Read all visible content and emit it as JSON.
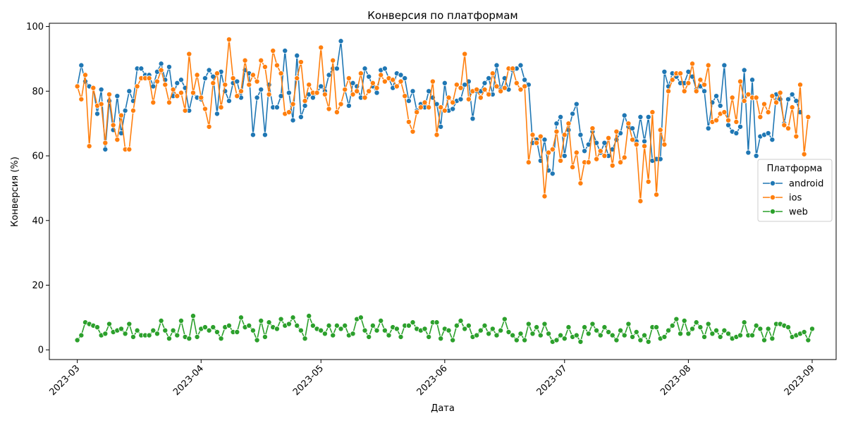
{
  "chart_data": {
    "type": "line",
    "title": "Конверсия по платформам",
    "xlabel": "Дата",
    "ylabel": "Конверсия (%)",
    "x_range": [
      "2023-02-22",
      "2023-09-07"
    ],
    "ylim": [
      -3,
      101
    ],
    "y_ticks": [
      0,
      20,
      40,
      60,
      80,
      100
    ],
    "x_ticks": [
      {
        "date": "2023-03-01",
        "label": "2023-03"
      },
      {
        "date": "2023-04-01",
        "label": "2023-04"
      },
      {
        "date": "2023-05-01",
        "label": "2023-05"
      },
      {
        "date": "2023-06-01",
        "label": "2023-06"
      },
      {
        "date": "2023-07-01",
        "label": "2023-07"
      },
      {
        "date": "2023-08-01",
        "label": "2023-08"
      },
      {
        "date": "2023-09-01",
        "label": "2023-09"
      }
    ],
    "grid": false,
    "legend": {
      "title": "Платформа",
      "position": "right"
    },
    "start_date": "2023-03-01",
    "series": [
      {
        "name": "android",
        "color": "#1f77b4",
        "values": [
          81.5,
          88.0,
          83.0,
          81.5,
          81.0,
          73.0,
          80.5,
          62.0,
          77.0,
          68.0,
          78.5,
          67.0,
          74.0,
          80.0,
          77.0,
          87.0,
          87.0,
          85.0,
          85.0,
          81.5,
          86.0,
          88.5,
          83.5,
          87.5,
          78.5,
          82.5,
          83.5,
          81.0,
          74.0,
          79.5,
          78.0,
          77.5,
          84.0,
          86.5,
          84.5,
          73.0,
          86.0,
          80.0,
          77.0,
          82.5,
          83.0,
          78.0,
          86.5,
          85.5,
          66.5,
          78.0,
          80.5,
          66.5,
          82.0,
          75.0,
          75.0,
          78.5,
          92.5,
          79.5,
          71.0,
          91.0,
          72.0,
          75.5,
          79.0,
          78.0,
          79.5,
          81.5,
          80.0,
          85.0,
          87.0,
          87.0,
          95.5,
          80.5,
          75.5,
          82.5,
          81.5,
          78.0,
          87.0,
          84.5,
          81.5,
          79.5,
          86.5,
          87.0,
          84.0,
          81.0,
          85.5,
          85.0,
          84.0,
          77.0,
          80.0,
          74.0,
          76.0,
          75.0,
          80.0,
          78.0,
          76.0,
          69.0,
          82.5,
          74.0,
          74.5,
          77.0,
          77.5,
          82.0,
          83.0,
          71.5,
          80.0,
          80.0,
          82.5,
          84.0,
          79.0,
          88.0,
          80.5,
          84.0,
          80.5,
          86.5,
          87.0,
          88.0,
          83.5,
          82.0,
          64.0,
          65.0,
          58.5,
          65.0,
          55.5,
          54.5,
          70.0,
          72.0,
          60.0,
          68.0,
          73.0,
          76.0,
          66.5,
          61.5,
          63.5,
          67.5,
          64.0,
          61.0,
          64.0,
          60.0,
          62.0,
          65.0,
          67.0,
          72.5,
          69.0,
          68.5,
          64.5,
          72.0,
          64.5,
          72.0,
          58.5,
          59.0,
          59.0,
          86.0,
          81.5,
          85.5,
          84.5,
          82.5,
          82.5,
          86.0,
          84.5,
          80.5,
          81.5,
          80.0,
          68.5,
          76.5,
          78.5,
          75.5,
          88.0,
          69.5,
          67.5,
          67.0,
          69.0,
          86.5,
          61.0,
          83.5,
          60.0,
          66.0,
          66.5,
          67.0,
          65.0,
          79.0,
          77.5,
          70.0,
          77.5,
          79.0,
          77.0,
          73.5
        ]
      },
      {
        "name": "ios",
        "color": "#ff7f0e",
        "values": [
          81.5,
          77.5,
          85.0,
          63.0,
          81.0,
          75.5,
          76.0,
          64.0,
          79.0,
          69.5,
          65.0,
          72.5,
          62.0,
          62.0,
          74.0,
          81.5,
          84.0,
          84.0,
          84.0,
          76.5,
          83.0,
          86.5,
          82.0,
          76.5,
          80.5,
          78.5,
          79.5,
          74.0,
          91.5,
          79.5,
          85.0,
          78.0,
          74.5,
          69.0,
          82.5,
          85.5,
          75.0,
          82.0,
          96.0,
          84.0,
          78.5,
          80.0,
          89.5,
          82.0,
          85.0,
          83.0,
          89.5,
          87.5,
          79.0,
          92.5,
          88.0,
          85.5,
          73.0,
          73.5,
          76.0,
          84.0,
          89.0,
          77.0,
          82.0,
          79.5,
          79.5,
          93.5,
          79.0,
          74.5,
          89.5,
          73.5,
          76.0,
          80.5,
          84.0,
          79.0,
          80.0,
          85.5,
          78.0,
          80.0,
          82.5,
          81.0,
          85.0,
          83.0,
          84.0,
          83.5,
          81.5,
          83.0,
          78.5,
          70.5,
          67.5,
          73.5,
          75.0,
          76.5,
          75.0,
          83.0,
          66.5,
          75.0,
          74.0,
          78.0,
          76.5,
          82.0,
          81.0,
          91.5,
          77.5,
          80.0,
          80.5,
          78.0,
          80.5,
          79.0,
          85.5,
          81.5,
          80.0,
          81.0,
          87.0,
          87.0,
          82.5,
          80.5,
          81.5,
          58.0,
          66.5,
          64.0,
          66.0,
          47.5,
          61.0,
          62.0,
          67.5,
          58.5,
          66.5,
          70.0,
          56.5,
          61.0,
          51.5,
          58.0,
          58.0,
          68.5,
          59.0,
          61.5,
          60.0,
          65.5,
          57.0,
          67.5,
          58.0,
          59.5,
          70.0,
          65.0,
          63.5,
          46.0,
          63.0,
          52.0,
          73.5,
          48.0,
          68.0,
          63.5,
          80.0,
          83.5,
          85.5,
          85.5,
          80.0,
          82.5,
          88.5,
          80.0,
          83.5,
          82.0,
          88.0,
          70.5,
          71.0,
          73.0,
          73.5,
          71.0,
          78.0,
          70.5,
          83.0,
          77.0,
          79.0,
          78.0,
          78.0,
          72.0,
          76.0,
          73.5,
          78.5,
          76.5,
          79.5,
          69.5,
          68.5,
          75.0,
          66.0,
          82.0,
          60.5,
          72.0
        ]
      },
      {
        "name": "web",
        "color": "#2ca02c",
        "values": [
          3.0,
          4.5,
          8.5,
          8.0,
          7.5,
          7.0,
          4.5,
          5.0,
          8.0,
          5.5,
          6.0,
          6.5,
          5.0,
          8.0,
          4.0,
          6.0,
          4.5,
          4.5,
          4.5,
          6.0,
          5.0,
          9.0,
          6.0,
          3.5,
          6.0,
          4.5,
          9.0,
          4.0,
          3.5,
          10.5,
          4.0,
          6.5,
          7.0,
          6.0,
          7.0,
          5.5,
          3.5,
          7.0,
          7.5,
          5.5,
          5.5,
          10.0,
          7.0,
          7.5,
          6.0,
          3.0,
          9.0,
          4.0,
          8.5,
          7.0,
          6.5,
          9.5,
          7.5,
          8.0,
          10.0,
          7.5,
          6.0,
          3.5,
          10.5,
          7.5,
          6.5,
          6.0,
          5.0,
          7.5,
          4.5,
          7.5,
          6.5,
          7.5,
          4.5,
          5.0,
          9.5,
          10.0,
          6.0,
          4.0,
          7.5,
          6.0,
          9.0,
          6.0,
          4.5,
          7.0,
          6.5,
          4.0,
          7.5,
          7.5,
          8.5,
          6.5,
          6.0,
          6.5,
          4.0,
          8.5,
          8.5,
          3.5,
          6.5,
          6.0,
          3.0,
          7.5,
          9.0,
          6.5,
          7.5,
          4.0,
          4.5,
          6.0,
          7.5,
          5.0,
          6.5,
          4.5,
          6.0,
          9.5,
          5.5,
          4.5,
          3.0,
          5.0,
          3.0,
          8.0,
          5.0,
          7.0,
          4.5,
          8.0,
          5.0,
          2.5,
          3.0,
          4.5,
          3.5,
          7.0,
          4.0,
          4.5,
          2.5,
          7.0,
          5.0,
          8.0,
          6.0,
          4.5,
          7.0,
          5.5,
          4.5,
          3.0,
          6.0,
          4.5,
          8.0,
          4.0,
          5.5,
          3.0,
          4.5,
          2.5,
          7.0,
          7.0,
          3.5,
          4.0,
          6.0,
          7.5,
          9.5,
          5.0,
          9.0,
          5.0,
          6.5,
          8.5,
          7.0,
          4.0,
          8.0,
          5.0,
          6.0,
          4.0,
          6.0,
          5.0,
          3.5,
          4.0,
          4.5,
          8.5,
          4.5,
          4.5,
          7.5,
          6.5,
          3.0,
          6.5,
          3.5,
          8.0,
          8.0,
          7.5,
          7.0,
          4.0,
          4.5,
          5.0,
          5.5,
          3.0,
          6.5
        ]
      }
    ]
  }
}
